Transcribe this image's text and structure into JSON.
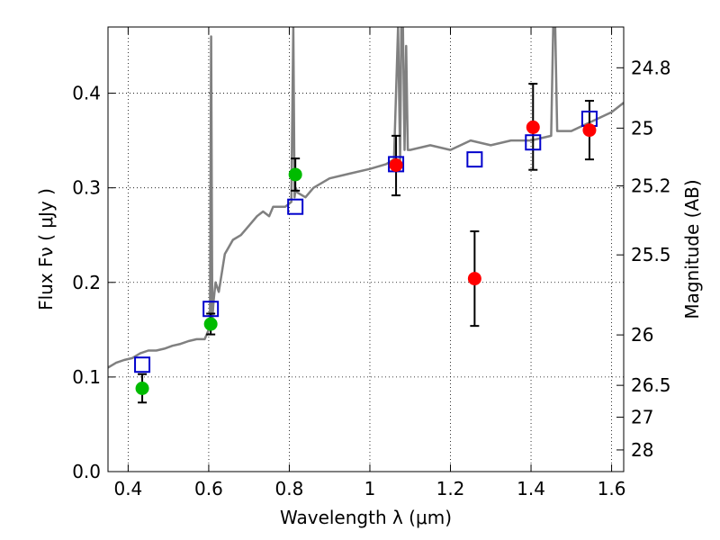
{
  "chart_data": {
    "type": "scatter",
    "xlabel": "Wavelength  λ (μm)",
    "ylabel": "Flux  Fν  ( μJy )",
    "ylabel_right": "Magnitude (AB)",
    "xlim": [
      0.35,
      1.63
    ],
    "ylim": [
      0.0,
      0.47
    ],
    "grid": true,
    "x_ticks": [
      0.4,
      0.6,
      0.8,
      1.0,
      1.2,
      1.4,
      1.6
    ],
    "x_tick_labels": [
      "0.4",
      "0.6",
      "0.8",
      "1",
      "1.2",
      "1.4",
      "1.6"
    ],
    "y_ticks": [
      0.0,
      0.1,
      0.2,
      0.3,
      0.4
    ],
    "y_tick_labels": [
      "0.0",
      "0.1",
      "0.2",
      "0.3",
      "0.4"
    ],
    "right_ticks": [
      {
        "label": "24.8",
        "flux": 0.4269
      },
      {
        "label": "25",
        "flux": 0.3631
      },
      {
        "label": "25.2",
        "flux": 0.302
      },
      {
        "label": "25.5",
        "flux": 0.2291
      },
      {
        "label": "26",
        "flux": 0.1445
      },
      {
        "label": "26.5",
        "flux": 0.0912
      },
      {
        "label": "27",
        "flux": 0.0575
      },
      {
        "label": "28",
        "flux": 0.0229
      }
    ],
    "series": [
      {
        "kind": "line",
        "color": "#808080",
        "x": [
          0.35,
          0.37,
          0.39,
          0.41,
          0.43,
          0.45,
          0.47,
          0.49,
          0.51,
          0.53,
          0.55,
          0.57,
          0.59,
          0.595,
          0.6,
          0.603,
          0.606,
          0.609,
          0.612,
          0.617,
          0.625,
          0.64,
          0.66,
          0.68,
          0.7,
          0.72,
          0.735,
          0.75,
          0.76,
          0.77,
          0.79,
          0.805,
          0.81,
          0.813,
          0.816,
          0.82,
          0.84,
          0.86,
          0.9,
          0.95,
          1.0,
          1.04,
          1.06,
          1.07,
          1.075,
          1.078,
          1.082,
          1.086,
          1.09,
          1.094,
          1.1,
          1.15,
          1.2,
          1.25,
          1.3,
          1.35,
          1.4,
          1.45,
          1.455,
          1.46,
          1.465,
          1.5,
          1.55,
          1.6,
          1.63
        ],
        "y": [
          0.11,
          0.115,
          0.118,
          0.12,
          0.125,
          0.128,
          0.128,
          0.13,
          0.133,
          0.135,
          0.138,
          0.14,
          0.14,
          0.145,
          0.15,
          0.155,
          0.46,
          0.16,
          0.18,
          0.2,
          0.19,
          0.23,
          0.245,
          0.25,
          0.26,
          0.27,
          0.275,
          0.27,
          0.28,
          0.28,
          0.28,
          0.285,
          0.47,
          0.29,
          0.3,
          0.295,
          0.29,
          0.3,
          0.31,
          0.315,
          0.32,
          0.325,
          0.33,
          0.47,
          0.33,
          0.47,
          0.47,
          0.34,
          0.45,
          0.34,
          0.34,
          0.345,
          0.34,
          0.35,
          0.345,
          0.35,
          0.35,
          0.355,
          0.47,
          0.47,
          0.36,
          0.36,
          0.37,
          0.38,
          0.39
        ]
      },
      {
        "kind": "open-square",
        "color": "#0000cc",
        "x": [
          0.435,
          0.605,
          0.815,
          1.065,
          1.26,
          1.405,
          1.545
        ],
        "y": [
          0.113,
          0.172,
          0.28,
          0.325,
          0.33,
          0.348,
          0.373
        ]
      },
      {
        "kind": "filled-circle",
        "color": "#00bb00",
        "x": [
          0.435,
          0.605,
          0.815
        ],
        "y": [
          0.088,
          0.156,
          0.314
        ],
        "err_low": [
          0.073,
          0.145,
          0.297
        ],
        "err_high": [
          0.103,
          0.167,
          0.331
        ]
      },
      {
        "kind": "filled-circle",
        "color": "#ff0000",
        "x": [
          1.065,
          1.26,
          1.405,
          1.545
        ],
        "y": [
          0.324,
          0.204,
          0.364,
          0.361
        ],
        "err_low": [
          0.292,
          0.154,
          0.319,
          0.33
        ],
        "err_high": [
          0.355,
          0.254,
          0.41,
          0.392
        ]
      }
    ]
  }
}
